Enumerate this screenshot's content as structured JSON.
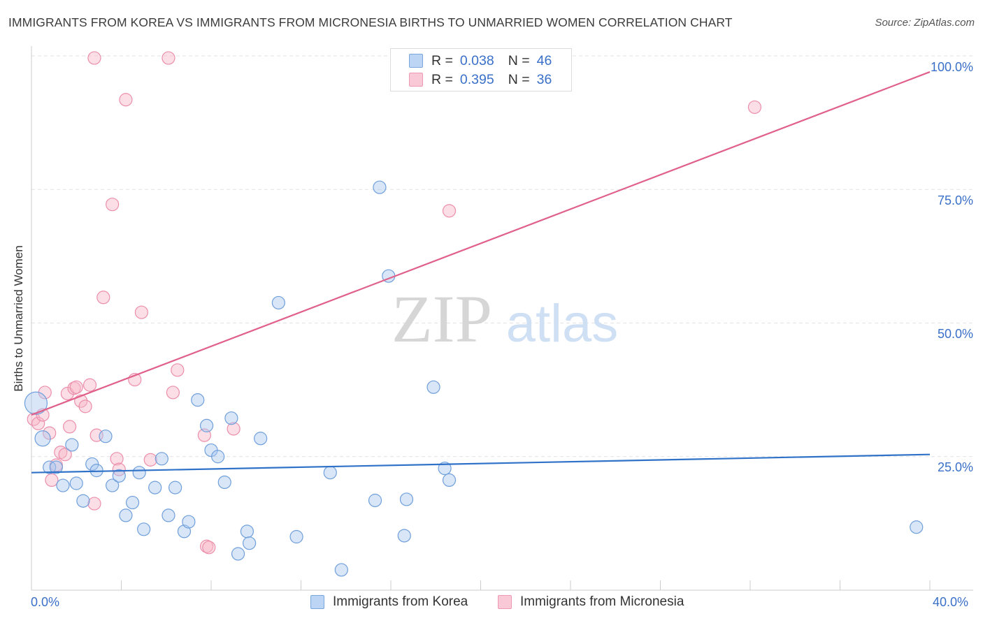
{
  "title": "IMMIGRANTS FROM KOREA VS IMMIGRANTS FROM MICRONESIA BIRTHS TO UNMARRIED WOMEN CORRELATION CHART",
  "source": "Source: ZipAtlas.com",
  "watermark": {
    "zip": "ZIP",
    "atlas": "atlas"
  },
  "legend": {
    "r_label": "R =",
    "n_label": "N =",
    "korea": {
      "r": "0.038",
      "n": "46",
      "color": "#a9c8f0"
    },
    "micronesia": {
      "r": "0.395",
      "n": "36",
      "color": "#f7b6c8"
    }
  },
  "chart_data": {
    "type": "scatter",
    "title": "IMMIGRANTS FROM KOREA VS IMMIGRANTS FROM MICRONESIA BIRTHS TO UNMARRIED WOMEN CORRELATION CHART",
    "xlabel": "",
    "ylabel": "Births to Unmarried Women",
    "xlim": [
      0,
      40
    ],
    "ylim": [
      0,
      100
    ],
    "x_tick_labels": [
      "0.0%",
      "40.0%"
    ],
    "y_ticks": [
      25,
      50,
      75,
      100
    ],
    "y_tick_labels": [
      "25.0%",
      "50.0%",
      "75.0%",
      "100.0%"
    ],
    "grid": true,
    "series": [
      {
        "name": "Immigrants from Korea",
        "color": "#a9c8f0",
        "stroke": "#6f9fdb",
        "trend_color": "#2f72c8",
        "trend": {
          "y_at_x0": 22.0,
          "y_at_x40": 25.4
        },
        "points": [
          [
            0.2,
            35.0
          ],
          [
            0.5,
            28.4
          ],
          [
            0.8,
            23.0
          ],
          [
            1.1,
            23.0
          ],
          [
            1.4,
            19.6
          ],
          [
            1.8,
            27.2
          ],
          [
            2.0,
            20.0
          ],
          [
            2.3,
            16.7
          ],
          [
            2.7,
            23.6
          ],
          [
            2.9,
            22.4
          ],
          [
            3.3,
            28.8
          ],
          [
            3.6,
            19.6
          ],
          [
            3.9,
            21.4
          ],
          [
            4.2,
            14.0
          ],
          [
            4.5,
            16.4
          ],
          [
            4.8,
            22.0
          ],
          [
            5.0,
            11.4
          ],
          [
            5.5,
            19.2
          ],
          [
            5.8,
            24.6
          ],
          [
            6.1,
            14.0
          ],
          [
            6.4,
            19.2
          ],
          [
            6.8,
            11.0
          ],
          [
            7.0,
            12.8
          ],
          [
            7.4,
            35.6
          ],
          [
            7.8,
            30.8
          ],
          [
            8.0,
            26.2
          ],
          [
            8.3,
            25.0
          ],
          [
            8.6,
            20.2
          ],
          [
            8.9,
            32.2
          ],
          [
            9.2,
            6.8
          ],
          [
            9.6,
            11.0
          ],
          [
            9.7,
            8.8
          ],
          [
            10.2,
            28.4
          ],
          [
            11.8,
            10.0
          ],
          [
            13.3,
            22.0
          ],
          [
            13.8,
            3.8
          ],
          [
            15.3,
            16.8
          ],
          [
            15.5,
            75.4
          ],
          [
            15.9,
            58.8
          ],
          [
            16.6,
            10.2
          ],
          [
            16.7,
            17.0
          ],
          [
            11.0,
            53.8
          ],
          [
            17.9,
            38.0
          ],
          [
            18.4,
            22.8
          ],
          [
            18.6,
            20.6
          ],
          [
            39.4,
            11.8
          ]
        ]
      },
      {
        "name": "Immigrants from Micronesia",
        "color": "#f7b6c8",
        "stroke": "#ec8fab",
        "trend_color": "#e0608a",
        "trend": {
          "y_at_x0": 32.8,
          "y_at_x40": 97.0
        },
        "points": [
          [
            0.1,
            32.0
          ],
          [
            0.3,
            31.2
          ],
          [
            0.5,
            32.8
          ],
          [
            0.6,
            37.0
          ],
          [
            0.8,
            29.4
          ],
          [
            0.9,
            20.6
          ],
          [
            1.1,
            23.4
          ],
          [
            1.3,
            25.8
          ],
          [
            1.5,
            25.4
          ],
          [
            1.6,
            36.8
          ],
          [
            1.7,
            30.6
          ],
          [
            1.9,
            37.8
          ],
          [
            2.0,
            38.0
          ],
          [
            2.2,
            35.4
          ],
          [
            2.4,
            34.4
          ],
          [
            2.6,
            38.4
          ],
          [
            2.8,
            16.2
          ],
          [
            2.9,
            29.0
          ],
          [
            3.2,
            54.8
          ],
          [
            3.6,
            72.2
          ],
          [
            3.8,
            24.6
          ],
          [
            3.9,
            22.6
          ],
          [
            4.2,
            91.8
          ],
          [
            4.6,
            39.4
          ],
          [
            4.9,
            52.0
          ],
          [
            5.3,
            24.4
          ],
          [
            6.3,
            37.0
          ],
          [
            6.5,
            41.2
          ],
          [
            7.7,
            29.0
          ],
          [
            7.8,
            8.2
          ],
          [
            7.9,
            8.0
          ],
          [
            9.0,
            30.2
          ],
          [
            2.8,
            99.6
          ],
          [
            6.1,
            99.6
          ],
          [
            18.6,
            71.0
          ],
          [
            32.2,
            90.4
          ]
        ]
      }
    ]
  },
  "bottom_legend": {
    "korea_label": "Immigrants from Korea",
    "micronesia_label": "Immigrants from Micronesia"
  }
}
